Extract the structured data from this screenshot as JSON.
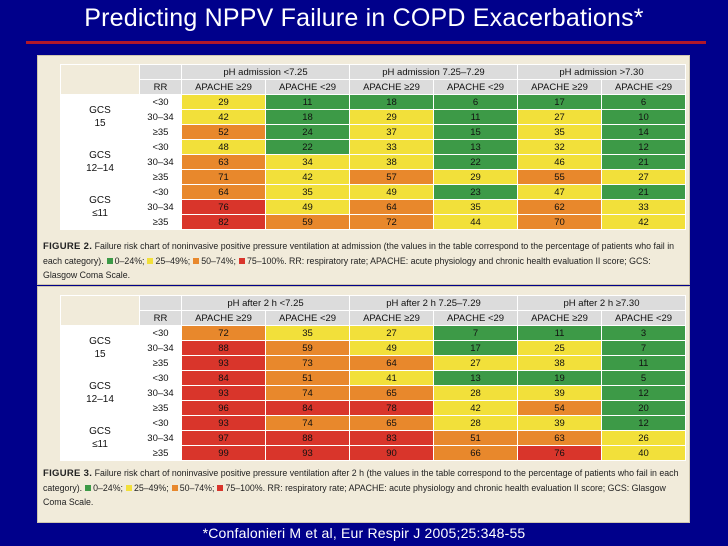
{
  "title": "Predicting NPPV Failure in COPD Exacerbations*",
  "citation": "*Confalonieri M et al, Eur Respir J 2005;25:348-55",
  "colors": {
    "green": "#3d9a47",
    "yellow": "#f2e03a",
    "orange": "#e8882c",
    "red": "#d9352b"
  },
  "figures": [
    {
      "ph_headers": [
        "pH admission <7.25",
        "pH admission 7.25–7.29",
        "pH admission >7.30"
      ],
      "rr_header": "RR",
      "sub_headers": [
        "APACHE ≥29",
        "APACHE <29",
        "APACHE ≥29",
        "APACHE <29",
        "APACHE ≥29",
        "APACHE <29"
      ],
      "groups": [
        {
          "gcs_label": "GCS",
          "gcs_value": "15"
        },
        {
          "gcs_label": "GCS",
          "gcs_value": "12–14"
        },
        {
          "gcs_label": "GCS",
          "gcs_value": "≤11"
        }
      ],
      "rr_values": [
        "<30",
        "30–34",
        "≥35"
      ],
      "rows": [
        [
          [
            "29",
            "y"
          ],
          [
            "11",
            "g"
          ],
          [
            "18",
            "g"
          ],
          [
            "6",
            "g"
          ],
          [
            "17",
            "g"
          ],
          [
            "6",
            "g"
          ]
        ],
        [
          [
            "42",
            "y"
          ],
          [
            "18",
            "g"
          ],
          [
            "29",
            "y"
          ],
          [
            "11",
            "g"
          ],
          [
            "27",
            "y"
          ],
          [
            "10",
            "g"
          ]
        ],
        [
          [
            "52",
            "o"
          ],
          [
            "24",
            "g"
          ],
          [
            "37",
            "y"
          ],
          [
            "15",
            "g"
          ],
          [
            "35",
            "y"
          ],
          [
            "14",
            "g"
          ]
        ],
        [
          [
            "48",
            "y"
          ],
          [
            "22",
            "g"
          ],
          [
            "33",
            "y"
          ],
          [
            "13",
            "g"
          ],
          [
            "32",
            "y"
          ],
          [
            "12",
            "g"
          ]
        ],
        [
          [
            "63",
            "o"
          ],
          [
            "34",
            "y"
          ],
          [
            "38",
            "y"
          ],
          [
            "22",
            "g"
          ],
          [
            "46",
            "y"
          ],
          [
            "21",
            "g"
          ]
        ],
        [
          [
            "71",
            "o"
          ],
          [
            "42",
            "y"
          ],
          [
            "57",
            "o"
          ],
          [
            "29",
            "y"
          ],
          [
            "55",
            "o"
          ],
          [
            "27",
            "y"
          ]
        ],
        [
          [
            "64",
            "o"
          ],
          [
            "35",
            "y"
          ],
          [
            "49",
            "y"
          ],
          [
            "23",
            "g"
          ],
          [
            "47",
            "y"
          ],
          [
            "21",
            "g"
          ]
        ],
        [
          [
            "76",
            "r"
          ],
          [
            "49",
            "y"
          ],
          [
            "64",
            "o"
          ],
          [
            "35",
            "y"
          ],
          [
            "62",
            "o"
          ],
          [
            "33",
            "y"
          ]
        ],
        [
          [
            "82",
            "r"
          ],
          [
            "59",
            "o"
          ],
          [
            "72",
            "o"
          ],
          [
            "44",
            "y"
          ],
          [
            "70",
            "o"
          ],
          [
            "42",
            "y"
          ]
        ]
      ],
      "caption_bold": "FIGURE 2.",
      "caption_text": "Failure risk chart of noninvasive positive pressure ventilation at admission (the values in the table correspond to the percentage of patients who fail in each category).",
      "legend": [
        "0–24%;",
        "25–49%;",
        "50–74%;",
        "75–100%."
      ],
      "caption_tail": "RR: respiratory rate; APACHE: acute physiology and chronic health evaluation II score; GCS: Glasgow Coma Scale."
    },
    {
      "ph_headers": [
        "pH after 2 h <7.25",
        "pH after 2 h 7.25–7.29",
        "pH after 2 h ≥7.30"
      ],
      "rr_header": "RR",
      "sub_headers": [
        "APACHE ≥29",
        "APACHE <29",
        "APACHE ≥29",
        "APACHE <29",
        "APACHE ≥29",
        "APACHE <29"
      ],
      "groups": [
        {
          "gcs_label": "GCS",
          "gcs_value": "15"
        },
        {
          "gcs_label": "GCS",
          "gcs_value": "12–14"
        },
        {
          "gcs_label": "GCS",
          "gcs_value": "≤11"
        }
      ],
      "rr_values": [
        "<30",
        "30–34",
        "≥35"
      ],
      "rows": [
        [
          [
            "72",
            "o"
          ],
          [
            "35",
            "y"
          ],
          [
            "27",
            "y"
          ],
          [
            "7",
            "g"
          ],
          [
            "11",
            "g"
          ],
          [
            "3",
            "g"
          ]
        ],
        [
          [
            "88",
            "r"
          ],
          [
            "59",
            "o"
          ],
          [
            "49",
            "y"
          ],
          [
            "17",
            "g"
          ],
          [
            "25",
            "y"
          ],
          [
            "7",
            "g"
          ]
        ],
        [
          [
            "93",
            "r"
          ],
          [
            "73",
            "o"
          ],
          [
            "64",
            "o"
          ],
          [
            "27",
            "y"
          ],
          [
            "38",
            "y"
          ],
          [
            "11",
            "g"
          ]
        ],
        [
          [
            "84",
            "r"
          ],
          [
            "51",
            "o"
          ],
          [
            "41",
            "y"
          ],
          [
            "13",
            "g"
          ],
          [
            "19",
            "g"
          ],
          [
            "5",
            "g"
          ]
        ],
        [
          [
            "93",
            "r"
          ],
          [
            "74",
            "o"
          ],
          [
            "65",
            "o"
          ],
          [
            "28",
            "y"
          ],
          [
            "39",
            "y"
          ],
          [
            "12",
            "g"
          ]
        ],
        [
          [
            "96",
            "r"
          ],
          [
            "84",
            "r"
          ],
          [
            "78",
            "r"
          ],
          [
            "42",
            "y"
          ],
          [
            "54",
            "o"
          ],
          [
            "20",
            "g"
          ]
        ],
        [
          [
            "93",
            "r"
          ],
          [
            "74",
            "o"
          ],
          [
            "65",
            "o"
          ],
          [
            "28",
            "y"
          ],
          [
            "39",
            "y"
          ],
          [
            "12",
            "g"
          ]
        ],
        [
          [
            "97",
            "r"
          ],
          [
            "88",
            "r"
          ],
          [
            "83",
            "r"
          ],
          [
            "51",
            "o"
          ],
          [
            "63",
            "o"
          ],
          [
            "26",
            "y"
          ]
        ],
        [
          [
            "99",
            "r"
          ],
          [
            "93",
            "r"
          ],
          [
            "90",
            "r"
          ],
          [
            "66",
            "o"
          ],
          [
            "76",
            "r"
          ],
          [
            "40",
            "y"
          ]
        ]
      ],
      "caption_bold": "FIGURE 3.",
      "caption_text": "Failure risk chart of noninvasive positive pressure ventilation after 2 h (the values in the table correspond to the percentage of patients who fail in each category).",
      "legend": [
        "0–24%;",
        "25–49%;",
        "50–74%;",
        "75–100%."
      ],
      "caption_tail": "RR: respiratory rate; APACHE: acute physiology and chronic health evaluation II score; GCS: Glasgow Coma Scale."
    }
  ]
}
